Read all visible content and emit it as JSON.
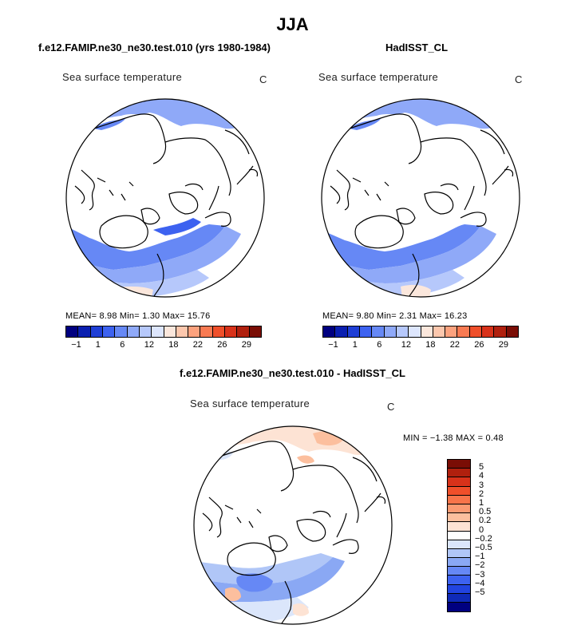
{
  "figure": {
    "season": "JJA"
  },
  "panels": [
    {
      "title": "f.e12.FAMIP.ne30_ne30.test.010 (yrs 1980-1984)",
      "variable": "Sea surface temperature",
      "units": "C",
      "stats": "MEAN=    8.98   Min=    1.30   Max=   15.76"
    },
    {
      "title": "HadISST_CL",
      "variable": "Sea surface temperature",
      "units": "C",
      "stats": "MEAN=    9.80   Min=    2.31   Max=   16.23"
    }
  ],
  "diff_panel": {
    "title": "f.e12.FAMIP.ne30_ne30.test.010 - HadISST_CL",
    "variable": "Sea surface temperature",
    "units": "C",
    "stats": "MIN =   −1.38  MAX =    0.48"
  },
  "abs_colorbar": {
    "colors": [
      "#000080",
      "#0a1fb0",
      "#1f3fd6",
      "#3d62f0",
      "#6688f5",
      "#8fa9f8",
      "#b6c8fb",
      "#dde6fd",
      "#fbe7dc",
      "#fcc7ad",
      "#fca27e",
      "#f87a52",
      "#ef4f2a",
      "#d8321a",
      "#b0200e",
      "#7a0d05"
    ],
    "tick_labels": [
      "−1",
      "1",
      "6",
      "12",
      "18",
      "22",
      "26",
      "29"
    ]
  },
  "diff_colorbar": {
    "colors": [
      "#7a0d05",
      "#b0200e",
      "#d8321a",
      "#f04f2a",
      "#f8744a",
      "#fb9a72",
      "#fcbf9e",
      "#fde3d4",
      "#ffffff",
      "#dbe6fb",
      "#b0c6f7",
      "#8aa8f4",
      "#6688f5",
      "#3d62f0",
      "#2244e0",
      "#0f2ab8",
      "#000080"
    ],
    "tick_labels": [
      "5",
      "4",
      "3",
      "2",
      "1",
      "0.5",
      "0.2",
      "0",
      "−0.2",
      "−0.5",
      "−1",
      "−2",
      "−3",
      "−4",
      "−5"
    ]
  }
}
